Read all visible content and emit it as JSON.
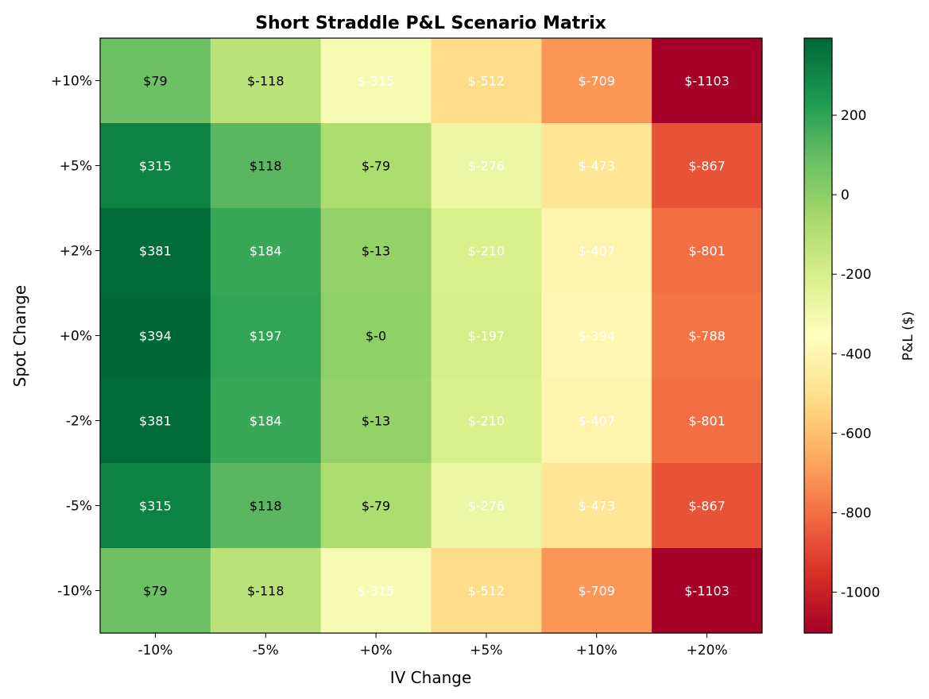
{
  "chart_data": {
    "type": "heatmap",
    "title": "Short Straddle P&L Scenario Matrix",
    "xlabel": "IV Change",
    "ylabel": "Spot Change",
    "x_categories": [
      "-10%",
      "-5%",
      "+0%",
      "+5%",
      "+10%",
      "+20%"
    ],
    "y_categories": [
      "+10%",
      "+5%",
      "+2%",
      "+0%",
      "-2%",
      "-5%",
      "-10%"
    ],
    "values": [
      [
        79,
        -118,
        -315,
        -512,
        -709,
        -1103
      ],
      [
        315,
        118,
        -79,
        -276,
        -473,
        -867
      ],
      [
        381,
        184,
        -13,
        -210,
        -407,
        -801
      ],
      [
        394,
        197,
        0,
        -197,
        -394,
        -788
      ],
      [
        381,
        184,
        -13,
        -210,
        -407,
        -801
      ],
      [
        315,
        118,
        -79,
        -276,
        -473,
        -867
      ],
      [
        79,
        -118,
        -315,
        -512,
        -709,
        -1103
      ]
    ],
    "cell_labels": [
      [
        "$79",
        "$-118",
        "$-315",
        "$-512",
        "$-709",
        "$-1103"
      ],
      [
        "$315",
        "$118",
        "$-79",
        "$-276",
        "$-473",
        "$-867"
      ],
      [
        "$381",
        "$184",
        "$-13",
        "$-210",
        "$-407",
        "$-801"
      ],
      [
        "$394",
        "$197",
        "$-0",
        "$-197",
        "$-394",
        "$-788"
      ],
      [
        "$381",
        "$184",
        "$-13",
        "$-210",
        "$-407",
        "$-801"
      ],
      [
        "$315",
        "$118",
        "$-79",
        "$-276",
        "$-473",
        "$-867"
      ],
      [
        "$79",
        "$-118",
        "$-315",
        "$-512",
        "$-709",
        "$-1103"
      ]
    ],
    "colormap": "RdYlGn",
    "colormap_stops": [
      "#a50026",
      "#d73027",
      "#f46d43",
      "#fdae61",
      "#fee08b",
      "#ffffbf",
      "#d9ef8b",
      "#a6d96a",
      "#66bd63",
      "#1a9850",
      "#006837"
    ],
    "color_range": [
      -1103,
      394
    ],
    "colorbar": {
      "label": "P&L ($)",
      "ticks": [
        200,
        0,
        -200,
        -400,
        -600,
        -800,
        -1000
      ],
      "tick_labels": [
        "200",
        "0",
        "-200",
        "-400",
        "-600",
        "-800",
        "-1000"
      ]
    }
  }
}
